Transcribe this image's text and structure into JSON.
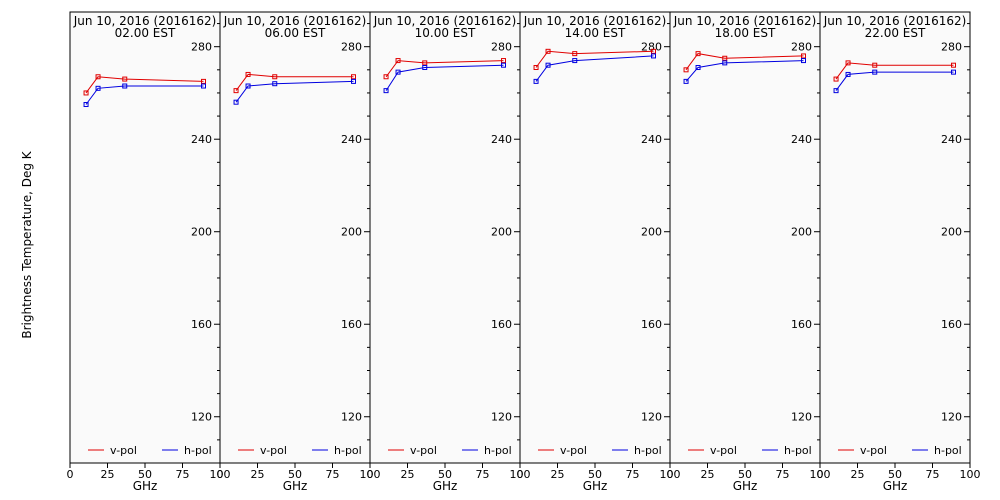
{
  "figure": {
    "ylabel": "Brightness Temperature, Deg K",
    "xlabel": "GHz"
  },
  "colors": {
    "v_pol": "#e00000",
    "h_pol": "#0000e0",
    "axes": "#000000",
    "plot_bg": "#fafafa"
  },
  "chart_data": [
    {
      "type": "line",
      "title": "Jun 10, 2016 (2016162)",
      "subtitle": "02.00 EST",
      "xlabel": "GHz",
      "ylabel": "Brightness Temperature, Deg K",
      "xlim": [
        0,
        100
      ],
      "ylim": [
        100,
        295
      ],
      "xticks": [
        0,
        25,
        50,
        75,
        100
      ],
      "yticks": [
        120,
        160,
        200,
        240,
        280
      ],
      "legend": "bottom",
      "series": [
        {
          "name": "v-pol",
          "color": "#e00000",
          "x": [
            10.7,
            18.7,
            36.5,
            89.0
          ],
          "y": [
            260,
            267,
            266,
            265
          ]
        },
        {
          "name": "h-pol",
          "color": "#0000e0",
          "x": [
            10.7,
            18.7,
            36.5,
            89.0
          ],
          "y": [
            255,
            262,
            263,
            263
          ]
        }
      ]
    },
    {
      "type": "line",
      "title": "Jun 10, 2016 (2016162)",
      "subtitle": "06.00 EST",
      "xlabel": "GHz",
      "xlim": [
        0,
        100
      ],
      "ylim": [
        100,
        295
      ],
      "xticks": [
        0,
        25,
        50,
        75,
        100
      ],
      "yticks": [
        120,
        160,
        200,
        240,
        280
      ],
      "legend": "bottom",
      "series": [
        {
          "name": "v-pol",
          "color": "#e00000",
          "x": [
            10.7,
            18.7,
            36.5,
            89.0
          ],
          "y": [
            261,
            268,
            267,
            267
          ]
        },
        {
          "name": "h-pol",
          "color": "#0000e0",
          "x": [
            10.7,
            18.7,
            36.5,
            89.0
          ],
          "y": [
            256,
            263,
            264,
            265
          ]
        }
      ]
    },
    {
      "type": "line",
      "title": "Jun 10, 2016 (2016162)",
      "subtitle": "10.00 EST",
      "xlabel": "GHz",
      "xlim": [
        0,
        100
      ],
      "ylim": [
        100,
        295
      ],
      "xticks": [
        0,
        25,
        50,
        75,
        100
      ],
      "yticks": [
        120,
        160,
        200,
        240,
        280
      ],
      "legend": "bottom",
      "series": [
        {
          "name": "v-pol",
          "color": "#e00000",
          "x": [
            10.7,
            18.7,
            36.5,
            89.0
          ],
          "y": [
            267,
            274,
            273,
            274
          ]
        },
        {
          "name": "h-pol",
          "color": "#0000e0",
          "x": [
            10.7,
            18.7,
            36.5,
            89.0
          ],
          "y": [
            261,
            269,
            271,
            272
          ]
        }
      ]
    },
    {
      "type": "line",
      "title": "Jun 10, 2016 (2016162)",
      "subtitle": "14.00 EST",
      "xlabel": "GHz",
      "xlim": [
        0,
        100
      ],
      "ylim": [
        100,
        295
      ],
      "xticks": [
        0,
        25,
        50,
        75,
        100
      ],
      "yticks": [
        120,
        160,
        200,
        240,
        280
      ],
      "legend": "bottom",
      "series": [
        {
          "name": "v-pol",
          "color": "#e00000",
          "x": [
            10.7,
            18.7,
            36.5,
            89.0
          ],
          "y": [
            271,
            278,
            277,
            278
          ]
        },
        {
          "name": "h-pol",
          "color": "#0000e0",
          "x": [
            10.7,
            18.7,
            36.5,
            89.0
          ],
          "y": [
            265,
            272,
            274,
            276
          ]
        }
      ]
    },
    {
      "type": "line",
      "title": "Jun 10, 2016 (2016162)",
      "subtitle": "18.00 EST",
      "xlabel": "GHz",
      "xlim": [
        0,
        100
      ],
      "ylim": [
        100,
        295
      ],
      "xticks": [
        0,
        25,
        50,
        75,
        100
      ],
      "yticks": [
        120,
        160,
        200,
        240,
        280
      ],
      "legend": "bottom",
      "series": [
        {
          "name": "v-pol",
          "color": "#e00000",
          "x": [
            10.7,
            18.7,
            36.5,
            89.0
          ],
          "y": [
            270,
            277,
            275,
            276
          ]
        },
        {
          "name": "h-pol",
          "color": "#0000e0",
          "x": [
            10.7,
            18.7,
            36.5,
            89.0
          ],
          "y": [
            265,
            271,
            273,
            274
          ]
        }
      ]
    },
    {
      "type": "line",
      "title": "Jun 10, 2016 (2016162)",
      "subtitle": "22.00 EST",
      "xlabel": "GHz",
      "xlim": [
        0,
        100
      ],
      "ylim": [
        100,
        295
      ],
      "xticks": [
        0,
        25,
        50,
        75,
        100
      ],
      "yticks": [
        120,
        160,
        200,
        240,
        280
      ],
      "legend": "bottom",
      "series": [
        {
          "name": "v-pol",
          "color": "#e00000",
          "x": [
            10.7,
            18.7,
            36.5,
            89.0
          ],
          "y": [
            266,
            273,
            272,
            272
          ]
        },
        {
          "name": "h-pol",
          "color": "#0000e0",
          "x": [
            10.7,
            18.7,
            36.5,
            89.0
          ],
          "y": [
            261,
            268,
            269,
            269
          ]
        }
      ]
    }
  ]
}
